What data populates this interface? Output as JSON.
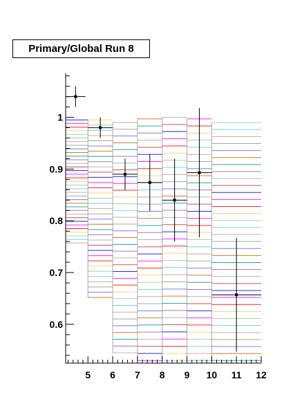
{
  "chart_data": {
    "type": "scatter",
    "title": "Primary/Global Run 8",
    "xlabel": "",
    "ylabel": "",
    "xlim": [
      4.1,
      12.0
    ],
    "ylim": [
      0.525,
      1.085
    ],
    "x_ticks": [
      5,
      6,
      7,
      8,
      9,
      10,
      11,
      12
    ],
    "y_ticks": [
      0.6,
      0.7,
      0.8,
      0.9,
      1.0
    ],
    "x_tick_labels": [
      "5",
      "6",
      "7",
      "8",
      "9",
      "10",
      "11",
      "12"
    ],
    "y_tick_labels": [
      "0.6",
      "0.7",
      "0.8",
      "0.9",
      "1"
    ],
    "grid": false,
    "series": [
      {
        "color": "#000000",
        "x": [
          4.5,
          5.5,
          6.5,
          7.5,
          8.5,
          9.5,
          11.0
        ],
        "y": [
          1.04,
          0.98,
          0.89,
          0.874,
          0.84,
          0.893,
          0.657
        ],
        "xerr": [
          0.4,
          0.5,
          0.5,
          0.5,
          0.5,
          0.5,
          1.0
        ],
        "yerr_up": [
          0.02,
          0.02,
          0.03,
          0.055,
          0.08,
          0.125,
          0.11
        ],
        "yerr_dn": [
          0.02,
          0.02,
          0.03,
          0.055,
          0.08,
          0.125,
          0.11
        ]
      }
    ],
    "bands": [
      {
        "x0": 4.1,
        "x1": 5.0,
        "top": 0.995,
        "bottom": 0.757
      },
      {
        "x0": 5.0,
        "x1": 6.0,
        "top": 0.995,
        "bottom": 0.652
      },
      {
        "x0": 6.0,
        "x1": 7.0,
        "top": 0.99,
        "bottom": 0.545
      },
      {
        "x0": 7.0,
        "x1": 8.0,
        "top": 0.997,
        "bottom": 0.53
      },
      {
        "x0": 8.0,
        "x1": 9.0,
        "top": 1.0,
        "bottom": 0.53
      },
      {
        "x0": 9.0,
        "x1": 10.0,
        "top": 0.997,
        "bottom": 0.53
      },
      {
        "x0": 10.0,
        "x1": 12.0,
        "top": 0.99,
        "bottom": 0.53
      }
    ],
    "band_colors": [
      "#0000ff",
      "#ff00ff",
      "#ff0000",
      "#ffcc66",
      "#99cc99",
      "#66cccc",
      "#cc9999",
      "#999999",
      "#6666ff",
      "#cc6600",
      "#009999",
      "#996699",
      "#aaaaaa",
      "#cc3333"
    ]
  }
}
